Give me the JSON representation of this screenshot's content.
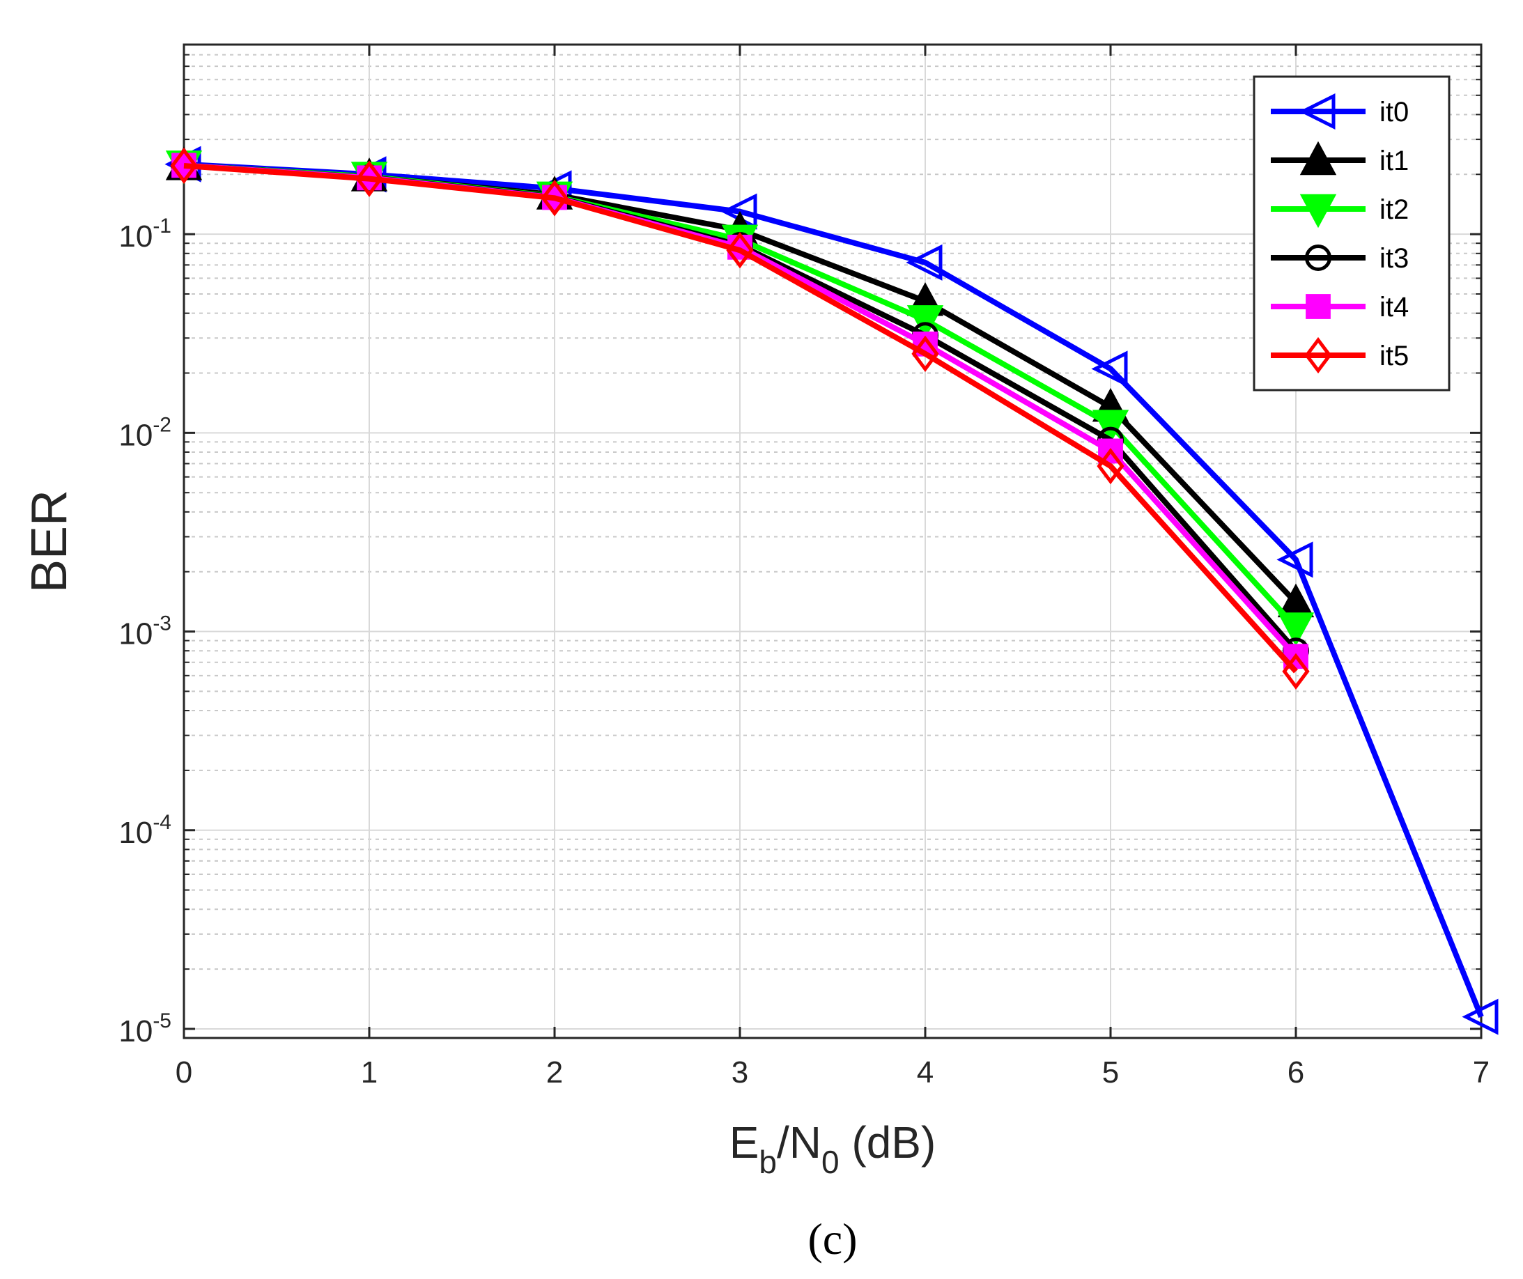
{
  "chart_data": {
    "type": "line",
    "yscale": "log",
    "xlabel": {
      "main": "E",
      "sub1": "b",
      "mid": "/N",
      "sub2": "0",
      "tail": " (dB)"
    },
    "ylabel": "BER",
    "caption": "(c)",
    "xlim": [
      0,
      7
    ],
    "ylim": [
      9e-06,
      0.9
    ],
    "x_ticks": [
      "0",
      "1",
      "2",
      "3",
      "4",
      "5",
      "6",
      "7"
    ],
    "y_ticks": [
      {
        "base": "10",
        "exp": "-5",
        "value": 1e-05
      },
      {
        "base": "10",
        "exp": "-4",
        "value": 0.0001
      },
      {
        "base": "10",
        "exp": "-3",
        "value": 0.001
      },
      {
        "base": "10",
        "exp": "-2",
        "value": 0.01
      },
      {
        "base": "10",
        "exp": "-1",
        "value": 0.1
      }
    ],
    "grid": true,
    "legend_position": "top-right",
    "series": [
      {
        "name": "it0",
        "color": "#0000ff",
        "marker": "triangle-left",
        "x": [
          0,
          1,
          2,
          3,
          4,
          5,
          6,
          7
        ],
        "y": [
          0.225,
          0.2,
          0.17,
          0.13,
          0.072,
          0.021,
          0.0023,
          1.15e-05
        ]
      },
      {
        "name": "it1",
        "color": "#000000",
        "marker": "triangle-up",
        "x": [
          0,
          1,
          2,
          3,
          4,
          5,
          6
        ],
        "y": [
          0.222,
          0.195,
          0.158,
          0.105,
          0.046,
          0.0135,
          0.0014
        ]
      },
      {
        "name": "it2",
        "color": "#00ff00",
        "marker": "triangle-down",
        "x": [
          0,
          1,
          2,
          3,
          4,
          5,
          6
        ],
        "y": [
          0.222,
          0.195,
          0.155,
          0.094,
          0.037,
          0.011,
          0.00105
        ]
      },
      {
        "name": "it3",
        "color": "#000000",
        "marker": "circle",
        "x": [
          0,
          1,
          2,
          3,
          4,
          5,
          6
        ],
        "y": [
          0.222,
          0.193,
          0.154,
          0.088,
          0.031,
          0.0092,
          0.0008
        ]
      },
      {
        "name": "it4",
        "color": "#ff00ff",
        "marker": "square",
        "x": [
          0,
          1,
          2,
          3,
          4,
          5,
          6
        ],
        "y": [
          0.222,
          0.192,
          0.153,
          0.086,
          0.028,
          0.0081,
          0.00075
        ]
      },
      {
        "name": "it5",
        "color": "#ff0000",
        "marker": "diamond",
        "x": [
          0,
          1,
          2,
          3,
          4,
          5,
          6
        ],
        "y": [
          0.221,
          0.19,
          0.152,
          0.083,
          0.025,
          0.0068,
          0.00063
        ]
      }
    ]
  }
}
